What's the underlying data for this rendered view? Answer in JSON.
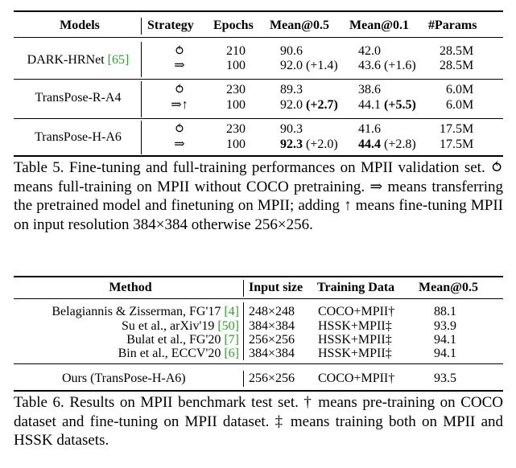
{
  "table5": {
    "headers": [
      "Models",
      "Strategy",
      "Epochs",
      "Mean@0.5",
      "Mean@0.1",
      "#Params"
    ],
    "groups": [
      {
        "model": "DARK-HRNet",
        "citation": "[65]",
        "rows": [
          {
            "strategy": "⥀",
            "epochs": "210",
            "mean05": "90.6",
            "mean05_delta": "",
            "mean01": "42.0",
            "mean01_delta": "",
            "params": "28.5M"
          },
          {
            "strategy": "⇒",
            "epochs": "100",
            "mean05": "92.0",
            "mean05_delta": "(+1.4)",
            "mean01": "43.6",
            "mean01_delta": "(+1.6)",
            "params": "28.5M"
          }
        ]
      },
      {
        "model": "TransPose-R-A4",
        "citation": "",
        "rows": [
          {
            "strategy": "⥀",
            "epochs": "230",
            "mean05": "89.3",
            "mean05_delta": "",
            "mean01": "38.6",
            "mean01_delta": "",
            "params": "6.0M"
          },
          {
            "strategy": "⇒↑",
            "epochs": "100",
            "mean05": "92.0",
            "mean05_delta": "(+2.7)",
            "mean01": "44.1",
            "mean01_delta": "(+5.5)",
            "params": "6.0M"
          }
        ]
      },
      {
        "model": "TransPose-H-A6",
        "citation": "",
        "rows": [
          {
            "strategy": "⥀",
            "epochs": "230",
            "mean05": "90.3",
            "mean05_delta": "",
            "mean01": "41.6",
            "mean01_delta": "",
            "params": "17.5M"
          },
          {
            "strategy": "⇒",
            "epochs": "100",
            "mean05": "92.3",
            "mean05_delta": "(+2.0)",
            "mean01": "44.4",
            "mean01_delta": "(+2.8)",
            "params": "17.5M"
          }
        ]
      }
    ],
    "caption": {
      "label": "Table 5.",
      "text1": " Fine-tuning and full-training performances on MPII validation set. ",
      "sym1": "⥀",
      "text2": " means full-training on MPII without COCO pretraining. ",
      "sym2": "⇒",
      "text3": " means transferring the pretrained model and finetuning on MPII; adding ",
      "sym3": "↑",
      "text4": " means fine-tuning MPII on input resolution 384×384 otherwise 256×256."
    }
  },
  "table6": {
    "headers": [
      "Method",
      "Input size",
      "Training Data",
      "Mean@0.5"
    ],
    "rows": [
      {
        "method": "Belagiannis & Zisserman, FG'17",
        "cite": "[4]",
        "input": "248×248",
        "data": "COCO+MPII†",
        "mean": "88.1"
      },
      {
        "method": "Su et al., arXiv'19",
        "cite": "[50]",
        "input": "384×384",
        "data": "HSSK+MPII‡",
        "mean": "93.9"
      },
      {
        "method": "Bulat et al., FG'20",
        "cite": "[7]",
        "input": "256×256",
        "data": "HSSK+MPII‡",
        "mean": "94.1"
      },
      {
        "method": "Bin et al., ECCV'20",
        "cite": "[6]",
        "input": "384×384",
        "data": "HSSK+MPII‡",
        "mean": "94.1"
      }
    ],
    "ours": {
      "method": "Ours (TransPose-H-A6)",
      "input": "256×256",
      "data": "COCO+MPII†",
      "mean": "93.5"
    },
    "caption": {
      "label": "Table 6.",
      "text": " Results on MPII benchmark test set. † means pre-training on COCO dataset and fine-tuning on MPII dataset. ‡ means training both on MPII and HSSK datasets."
    }
  }
}
